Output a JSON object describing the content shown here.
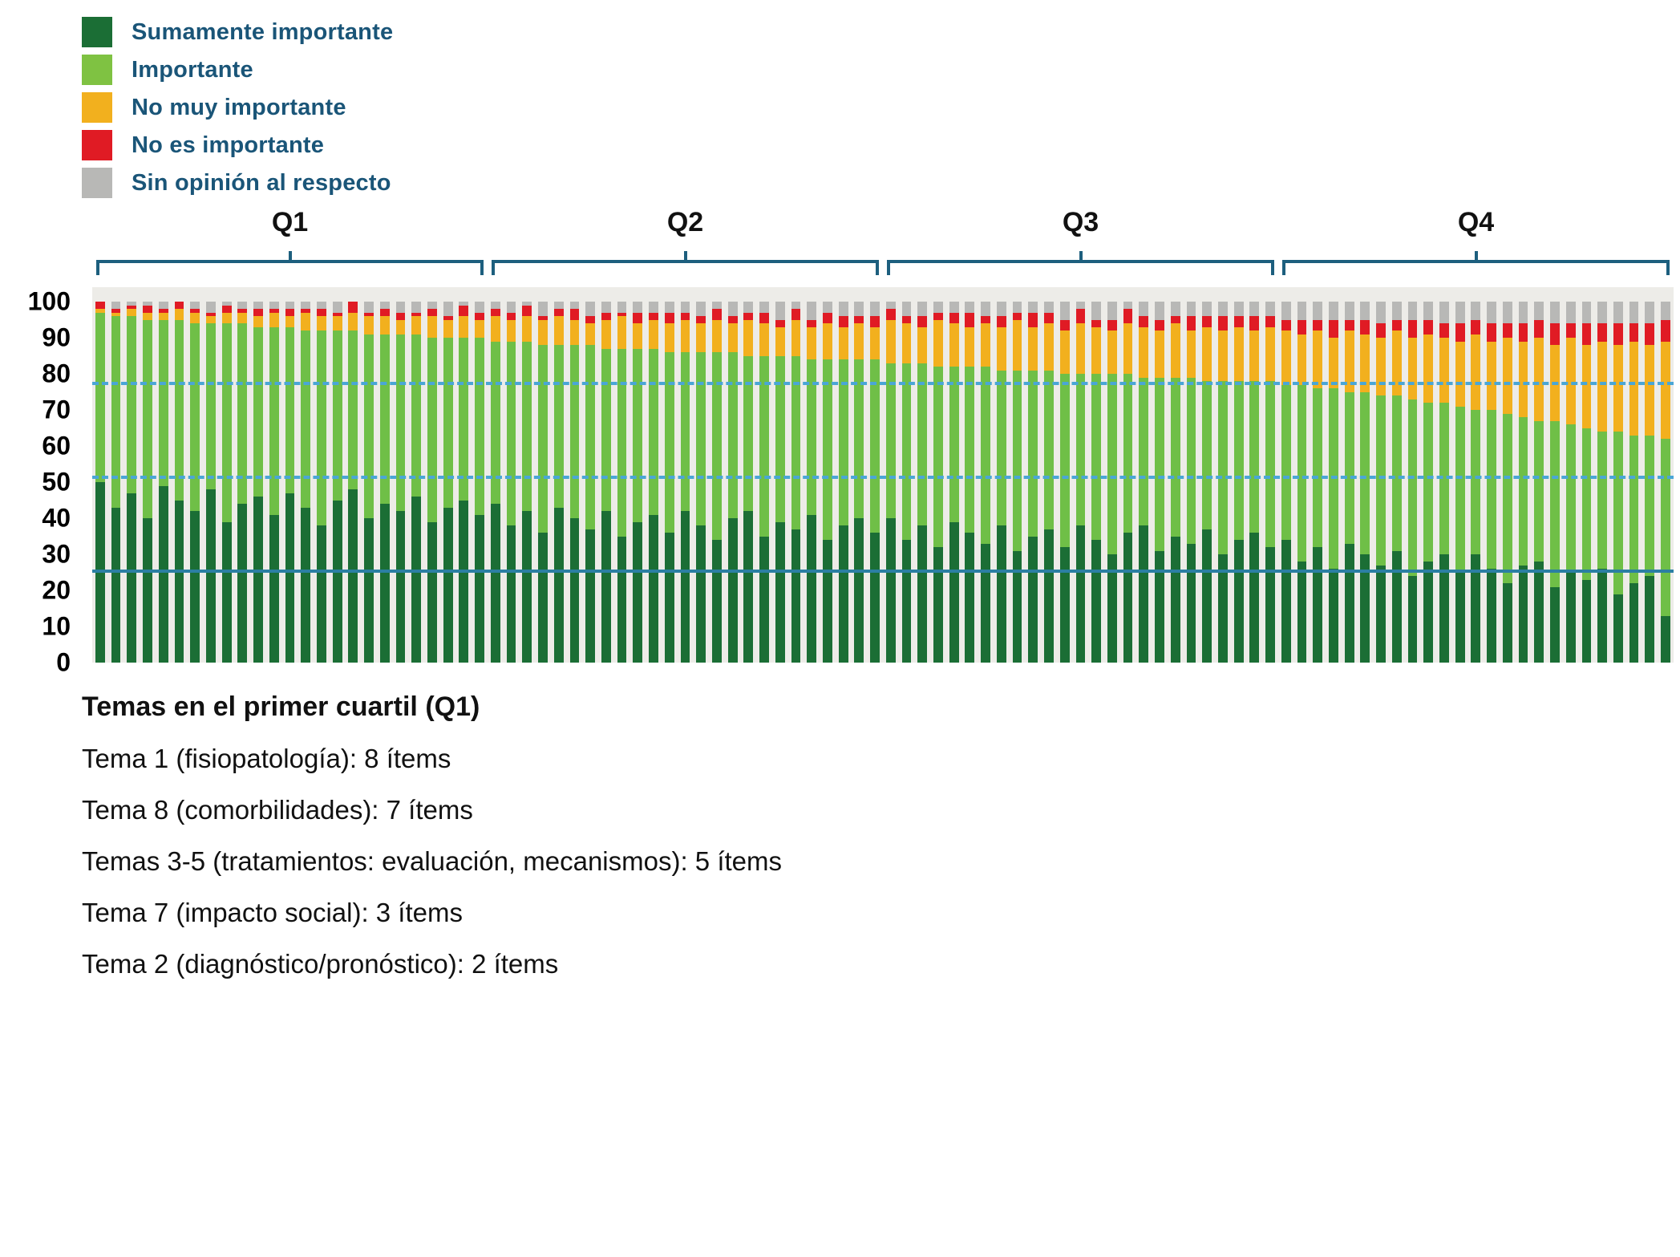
{
  "legend": {
    "items": [
      {
        "label": "Sumamente importante",
        "color": "#1b6e35"
      },
      {
        "label": "Importante",
        "color": "#7fc242"
      },
      {
        "label": "No muy importante",
        "color": "#f2b01e"
      },
      {
        "label": "No es importante",
        "color": "#e01b24"
      },
      {
        "label": "Sin opinión al respecto",
        "color": "#b8b8b6"
      }
    ],
    "text_color": "#1a5578"
  },
  "quartiles": [
    "Q1",
    "Q2",
    "Q3",
    "Q4"
  ],
  "y_axis": {
    "ticks": [
      100,
      90,
      80,
      70,
      60,
      50,
      40,
      30,
      20,
      10,
      0
    ]
  },
  "reference_lines": [
    {
      "value": 77,
      "style": "dashed",
      "color": "#4aa6d6"
    },
    {
      "value": 51,
      "style": "dashed",
      "color": "#4aa6d6"
    },
    {
      "value": 25,
      "style": "solid",
      "color": "#2b7fa3"
    }
  ],
  "footnotes": {
    "title": "Temas en el primer cuartil (Q1)",
    "lines": [
      "Tema 1 (fisiopatología): 8 ítems",
      "Tema 8 (comorbilidades): 7 ítems",
      "Temas 3-5 (tratamientos: evaluación, mecanismos): 5 ítems",
      "Tema 7 (impacto social): 3 ítems",
      "Tema 2 (diagnóstico/pronóstico): 2 ítems"
    ]
  },
  "chart_data": {
    "type": "bar",
    "stacked": true,
    "percent_stacked": true,
    "n_items": 100,
    "quartile_size": 25,
    "title": "",
    "xlabel": "",
    "ylabel": "",
    "ylim": [
      0,
      100
    ],
    "x_axis_labels": [],
    "legend_position": "top-left",
    "grid": false,
    "series": [
      {
        "name": "Sumamente importante",
        "color": "#1b6e35",
        "values": [
          50,
          43,
          47,
          40,
          49,
          45,
          42,
          48,
          39,
          44,
          46,
          41,
          47,
          43,
          38,
          45,
          48,
          40,
          44,
          42,
          46,
          39,
          43,
          45,
          41,
          44,
          38,
          42,
          36,
          43,
          40,
          37,
          42,
          35,
          39,
          41,
          36,
          42,
          38,
          34,
          40,
          42,
          35,
          39,
          37,
          41,
          34,
          38,
          40,
          36,
          40,
          34,
          38,
          32,
          39,
          36,
          33,
          38,
          31,
          35,
          37,
          32,
          38,
          34,
          30,
          36,
          38,
          31,
          35,
          33,
          37,
          30,
          34,
          36,
          32,
          34,
          28,
          32,
          26,
          33,
          30,
          27,
          31,
          24,
          28,
          30,
          25,
          30,
          26,
          22,
          27,
          28,
          21,
          25,
          23,
          26,
          19,
          22,
          24,
          13
        ]
      },
      {
        "name": "Importante",
        "color": "#6fbf47",
        "values": [
          47,
          53,
          49,
          55,
          46,
          50,
          52,
          46,
          55,
          50,
          47,
          52,
          46,
          49,
          54,
          47,
          44,
          51,
          47,
          49,
          45,
          51,
          47,
          45,
          49,
          45,
          51,
          47,
          52,
          45,
          48,
          51,
          45,
          52,
          48,
          46,
          50,
          44,
          48,
          52,
          46,
          43,
          50,
          46,
          48,
          43,
          50,
          46,
          44,
          48,
          43,
          49,
          45,
          50,
          43,
          46,
          49,
          43,
          50,
          46,
          44,
          48,
          42,
          46,
          50,
          44,
          41,
          48,
          44,
          46,
          41,
          48,
          44,
          42,
          46,
          43,
          49,
          44,
          50,
          42,
          45,
          47,
          43,
          49,
          44,
          42,
          46,
          40,
          44,
          47,
          41,
          39,
          46,
          41,
          42,
          38,
          45,
          41,
          39,
          49
        ]
      },
      {
        "name": "No muy importante",
        "color": "#f2b01e",
        "values": [
          1,
          1,
          2,
          2,
          2,
          3,
          3,
          2,
          3,
          3,
          3,
          4,
          3,
          5,
          4,
          4,
          5,
          5,
          5,
          4,
          5,
          6,
          5,
          6,
          5,
          7,
          6,
          7,
          7,
          8,
          7,
          6,
          8,
          9,
          7,
          8,
          8,
          9,
          8,
          9,
          8,
          10,
          9,
          8,
          10,
          9,
          10,
          9,
          10,
          9,
          12,
          11,
          10,
          13,
          12,
          11,
          12,
          12,
          14,
          12,
          13,
          12,
          14,
          13,
          12,
          14,
          14,
          13,
          15,
          13,
          15,
          14,
          15,
          14,
          15,
          15,
          14,
          16,
          14,
          17,
          16,
          16,
          18,
          17,
          19,
          18,
          18,
          21,
          19,
          21,
          21,
          23,
          21,
          24,
          23,
          25,
          24,
          26,
          25,
          27
        ]
      },
      {
        "name": "No es importante",
        "color": "#e01b24",
        "values": [
          2,
          1,
          1,
          2,
          1,
          2,
          1,
          1,
          2,
          1,
          2,
          1,
          2,
          1,
          2,
          1,
          3,
          1,
          2,
          2,
          1,
          2,
          1,
          3,
          2,
          2,
          2,
          3,
          1,
          2,
          3,
          2,
          2,
          1,
          3,
          2,
          3,
          2,
          2,
          3,
          2,
          2,
          3,
          2,
          3,
          2,
          3,
          3,
          2,
          3,
          3,
          2,
          3,
          2,
          3,
          4,
          2,
          3,
          2,
          4,
          3,
          3,
          4,
          2,
          3,
          4,
          3,
          3,
          2,
          4,
          3,
          4,
          3,
          4,
          3,
          3,
          4,
          3,
          5,
          3,
          4,
          4,
          3,
          5,
          4,
          4,
          5,
          4,
          5,
          4,
          5,
          5,
          6,
          4,
          6,
          5,
          6,
          5,
          6,
          6
        ]
      },
      {
        "name": "Sin opinión al respecto",
        "color": "#b8b8b6",
        "values": [
          0,
          2,
          1,
          1,
          2,
          0,
          2,
          3,
          1,
          2,
          2,
          2,
          2,
          2,
          2,
          3,
          0,
          3,
          2,
          3,
          3,
          2,
          4,
          1,
          3,
          2,
          3,
          1,
          4,
          2,
          2,
          4,
          3,
          3,
          3,
          3,
          3,
          3,
          4,
          2,
          4,
          3,
          3,
          5,
          2,
          5,
          3,
          4,
          4,
          4,
          2,
          4,
          4,
          3,
          3,
          3,
          4,
          4,
          3,
          3,
          3,
          5,
          2,
          5,
          5,
          2,
          4,
          5,
          4,
          4,
          4,
          4,
          4,
          4,
          4,
          5,
          5,
          5,
          5,
          5,
          5,
          6,
          5,
          5,
          5,
          6,
          6,
          5,
          6,
          6,
          6,
          5,
          6,
          6,
          6,
          6,
          6,
          6,
          6,
          5
        ]
      }
    ]
  }
}
